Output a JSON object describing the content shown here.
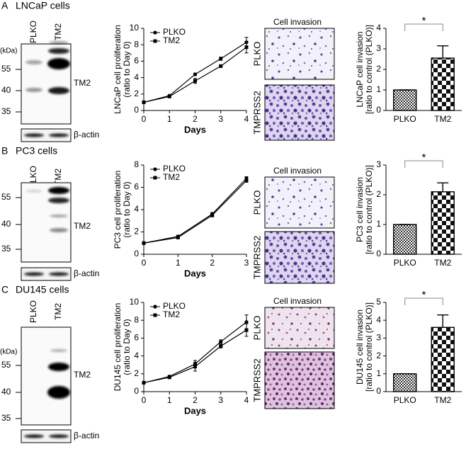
{
  "panels": [
    {
      "label": "A",
      "title": "LNCaP cells",
      "lanes": [
        "PLKO",
        "TM2"
      ],
      "kda": "(kDa)",
      "markers": [
        "55",
        "40",
        "35"
      ],
      "protein": "TM2",
      "loading": "β-actin",
      "invasion_title": "Cell invasion",
      "invasion_rows": [
        "PLKO",
        "TMPRSS2"
      ]
    },
    {
      "label": "B",
      "title": "PC3 cells",
      "lanes": [
        "PLKO",
        "TM2"
      ],
      "markers": [
        "55",
        "40",
        "35"
      ],
      "protein": "TM2",
      "loading": "β-actin",
      "invasion_title": "Cell invasion",
      "invasion_rows": [
        "PLKO",
        "TMPRSS2"
      ]
    },
    {
      "label": "C",
      "title": "DU145 cells",
      "lanes": [
        "PLKO",
        "TM2"
      ],
      "kda": "(kDa)",
      "markers": [
        "55",
        "40",
        "35"
      ],
      "protein": "TM2",
      "loading": "β-actin",
      "invasion_title": "Cell invasion",
      "invasion_rows": [
        "PLKO",
        "TMPRSS2"
      ]
    }
  ],
  "chart_data": [
    {
      "type": "line",
      "xlabel": "Days",
      "ylabel": [
        "LNCaP cell proliferation",
        "(ratio to Day 0)"
      ],
      "x": [
        0,
        1,
        2,
        3,
        4
      ],
      "xlim": [
        0,
        4
      ],
      "xticks": [
        0,
        1,
        2,
        3,
        4
      ],
      "ylim": [
        0,
        10
      ],
      "yticks": [
        0,
        2,
        4,
        6,
        8,
        10
      ],
      "series": [
        {
          "name": "PLKO",
          "color": "#000000",
          "marker": "circle",
          "values": [
            1,
            1.8,
            4.4,
            6.3,
            8.3
          ],
          "errors": [
            0,
            0.1,
            0.15,
            0.2,
            0.6
          ]
        },
        {
          "name": "TM2",
          "color": "#000000",
          "marker": "square",
          "values": [
            1,
            1.7,
            3.6,
            5.4,
            7.7
          ],
          "errors": [
            0,
            0.1,
            0.3,
            0.15,
            0.7
          ]
        }
      ]
    },
    {
      "type": "bar",
      "ylabel": [
        "LNCaP cell invasion",
        "[ratio to control (PLKO)]"
      ],
      "categories": [
        "PLKO",
        "TM2"
      ],
      "values": [
        1,
        2.55
      ],
      "errors": [
        0,
        0.6
      ],
      "ylim": [
        0,
        4
      ],
      "yticks": [
        0,
        1,
        2,
        3,
        4
      ],
      "annotation": "*"
    },
    {
      "type": "line",
      "xlabel": "Days",
      "ylabel": [
        "PC3 cell proliferation",
        "(ratio to Day 0)"
      ],
      "x": [
        0,
        1,
        2,
        3
      ],
      "xlim": [
        0,
        3
      ],
      "xticks": [
        0,
        1,
        2,
        3
      ],
      "ylim": [
        0,
        8
      ],
      "yticks": [
        0,
        2,
        4,
        6,
        8
      ],
      "series": [
        {
          "name": "PLKO",
          "color": "#000000",
          "marker": "circle",
          "values": [
            1,
            1.6,
            3.6,
            6.8
          ],
          "errors": [
            0,
            0.1,
            0.15,
            0.15
          ]
        },
        {
          "name": "TM2",
          "color": "#000000",
          "marker": "square",
          "values": [
            1,
            1.5,
            3.5,
            6.6
          ],
          "errors": [
            0,
            0.1,
            0.15,
            0.15
          ]
        }
      ]
    },
    {
      "type": "bar",
      "ylabel": [
        "PC3 cell invasion",
        "[ratio to control (PLKO)]"
      ],
      "categories": [
        "PLKO",
        "TM2"
      ],
      "values": [
        1,
        2.1
      ],
      "errors": [
        0,
        0.3
      ],
      "ylim": [
        0,
        3
      ],
      "yticks": [
        0,
        1,
        2,
        3
      ],
      "annotation": "*"
    },
    {
      "type": "line",
      "xlabel": "Days",
      "ylabel": [
        "DU145 cell proliferation",
        "(ratio to Day 0)"
      ],
      "x": [
        0,
        1,
        2,
        3,
        4
      ],
      "xlim": [
        0,
        4
      ],
      "xticks": [
        0,
        1,
        2,
        3,
        4
      ],
      "ylim": [
        0,
        10
      ],
      "yticks": [
        0,
        2,
        4,
        6,
        8,
        10
      ],
      "series": [
        {
          "name": "PLKO",
          "color": "#000000",
          "marker": "circle",
          "values": [
            1,
            1.7,
            3.1,
            5.6,
            7.8
          ],
          "errors": [
            0,
            0.1,
            0.4,
            0.2,
            0.8
          ]
        },
        {
          "name": "TM2",
          "color": "#000000",
          "marker": "square",
          "values": [
            1,
            1.6,
            2.8,
            5.1,
            6.9
          ],
          "errors": [
            0,
            0.1,
            0.5,
            0.2,
            0.7
          ]
        }
      ]
    },
    {
      "type": "bar",
      "ylabel": [
        "DU145 cell invasion",
        "[ratio to control (PLKO)]"
      ],
      "categories": [
        "PLKO",
        "TM2"
      ],
      "values": [
        1,
        3.6
      ],
      "errors": [
        0,
        0.7
      ],
      "ylim": [
        0,
        5
      ],
      "yticks": [
        0,
        1,
        2,
        3,
        4,
        5
      ],
      "annotation": "*"
    }
  ]
}
